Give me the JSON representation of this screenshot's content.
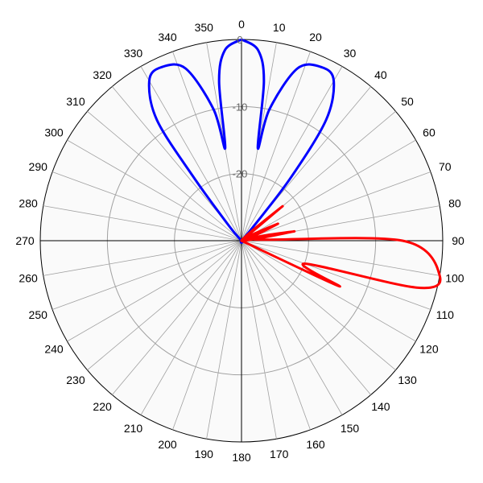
{
  "chart_data": {
    "type": "polar",
    "title": "",
    "angle_direction": "clockwise",
    "zero_angle": "top",
    "angle_ticks": [
      0,
      10,
      20,
      30,
      40,
      50,
      60,
      70,
      80,
      90,
      100,
      110,
      120,
      130,
      140,
      150,
      160,
      170,
      180,
      190,
      200,
      210,
      220,
      230,
      240,
      250,
      260,
      270,
      280,
      290,
      300,
      310,
      320,
      330,
      340,
      350
    ],
    "radial_range": [
      -30,
      0
    ],
    "radial_ticks": [
      0,
      -10,
      -20
    ],
    "grid": true,
    "colors": {
      "background": "#fafafa",
      "grid": "#a0a0a0",
      "series_a": "#0000ff",
      "series_b": "#ff0000"
    },
    "series": [
      {
        "color": "#0000ff",
        "points": [
          [
            0,
            0
          ],
          [
            5,
            -1.5
          ],
          [
            8,
            -6
          ],
          [
            10,
            -16
          ],
          [
            12,
            -10
          ],
          [
            18,
            -3
          ],
          [
            25,
            -1.5
          ],
          [
            30,
            -2.5
          ],
          [
            35,
            -8
          ],
          [
            38,
            -18
          ],
          [
            40,
            -27
          ],
          [
            45,
            -30
          ],
          [
            315,
            -30
          ],
          [
            320,
            -27
          ],
          [
            323,
            -18
          ],
          [
            325,
            -8
          ],
          [
            330,
            -2.5
          ],
          [
            335,
            -1.5
          ],
          [
            342,
            -3
          ],
          [
            348,
            -10
          ],
          [
            350,
            -16
          ],
          [
            352,
            -6
          ],
          [
            355,
            -1.5
          ],
          [
            360,
            0
          ]
        ]
      },
      {
        "color": "#ff0000",
        "points": [
          [
            40,
            -30
          ],
          [
            50,
            -22
          ],
          [
            60,
            -30
          ],
          [
            65,
            -24
          ],
          [
            70,
            -30
          ],
          [
            80,
            -22
          ],
          [
            85,
            -28
          ],
          [
            90,
            -6
          ],
          [
            100,
            0
          ],
          [
            105,
            -3
          ],
          [
            110,
            -20
          ],
          [
            115,
            -14
          ],
          [
            120,
            -30
          ]
        ]
      }
    ]
  }
}
